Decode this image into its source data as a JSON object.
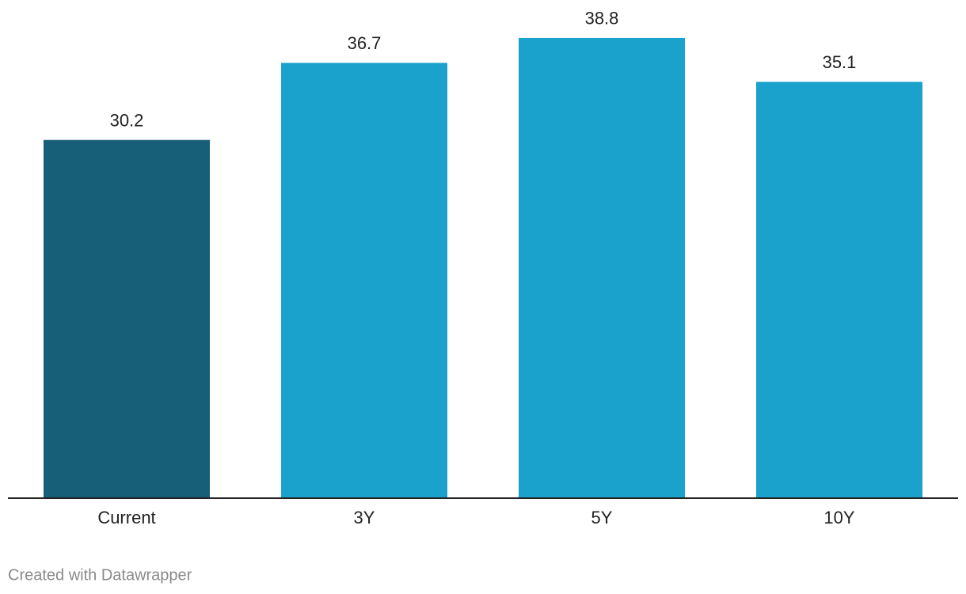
{
  "chart_data": {
    "type": "bar",
    "categories": [
      "Current",
      "3Y",
      "5Y",
      "10Y"
    ],
    "values": [
      30.2,
      36.7,
      38.8,
      35.1
    ],
    "colors": [
      "#175e78",
      "#1aa1cc",
      "#1aa1cc",
      "#1aa1cc"
    ],
    "ylim": [
      0,
      42
    ],
    "credit": "Created with Datawrapper"
  }
}
